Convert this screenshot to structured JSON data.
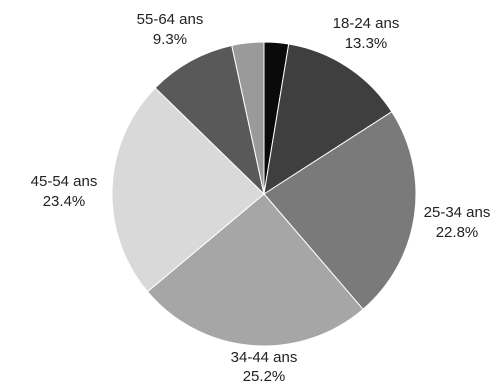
{
  "chart_data": {
    "type": "pie",
    "title": "",
    "start_angle_deg": 0,
    "direction": "clockwise",
    "slices": [
      {
        "label": "",
        "percent_label": "",
        "value": 2.6,
        "color": "#0a0a0a"
      },
      {
        "label": "18-24 ans",
        "percent_label": "13.3%",
        "value": 13.3,
        "color": "#3f3f3f"
      },
      {
        "label": "25-34 ans",
        "percent_label": "22.8%",
        "value": 22.8,
        "color": "#7a7a7a"
      },
      {
        "label": "34-44 ans",
        "percent_label": "25.2%",
        "value": 25.2,
        "color": "#a6a6a6"
      },
      {
        "label": "45-54 ans",
        "percent_label": "23.4%",
        "value": 23.4,
        "color": "#d9d9d9"
      },
      {
        "label": "55-64 ans",
        "percent_label": "9.3%",
        "value": 9.3,
        "color": "#595959"
      },
      {
        "label": "",
        "percent_label": "",
        "value": 3.4,
        "color": "#9a9a9a"
      }
    ]
  }
}
